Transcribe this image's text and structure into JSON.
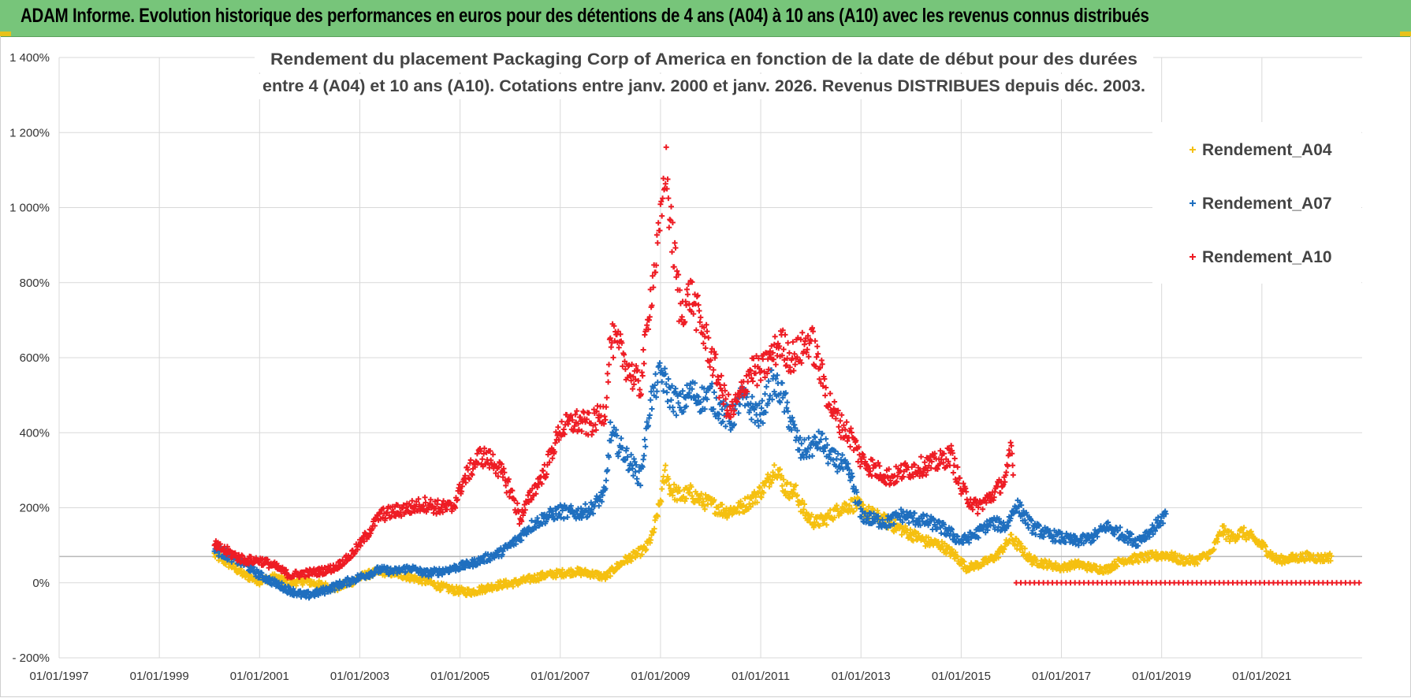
{
  "header": {
    "title": "ADAM Informe. Evolution historique des performances en euros pour des détentions de 4 ans (A04) à 10 ans (A10) avec les revenus connus distribués"
  },
  "colors": {
    "header_bg": "#77c57a",
    "a04": "#f5c010",
    "a07": "#1f6fbf",
    "a10": "#ee1c24"
  },
  "chart_data": {
    "type": "scatter",
    "title_lines": [
      "Rendement du placement Packaging Corp of America en fonction de la date de début pour des durées",
      "entre 4 (A04) et 10 ans (A10). Cotations entre janv. 2000 et janv. 2026. Revenus DISTRIBUES depuis déc. 2003."
    ],
    "x_unit": "year",
    "xlim": [
      1997.0,
      2023.0
    ],
    "ylim": [
      -200,
      1400
    ],
    "y_ticks": [
      -200,
      0,
      200,
      400,
      600,
      800,
      1000,
      1200,
      1400
    ],
    "y_tick_labels": [
      "- 200%",
      "0%",
      "200%",
      "400%",
      "600%",
      "800%",
      "1 000%",
      "1 200%",
      "1 400%"
    ],
    "x_ticks": [
      1997,
      1999,
      2001,
      2003,
      2005,
      2007,
      2009,
      2011,
      2013,
      2015,
      2017,
      2019,
      2021
    ],
    "x_tick_labels": [
      "01/01/1997",
      "01/01/1999",
      "01/01/2001",
      "01/01/2003",
      "01/01/2005",
      "01/01/2007",
      "01/01/2009",
      "01/01/2011",
      "01/01/2013",
      "01/01/2015",
      "01/01/2017",
      "01/01/2019",
      "01/01/2021"
    ],
    "reference_line_y": 70,
    "legend": [
      "Rendement_A04",
      "Rendement_A07",
      "Rendement_A10"
    ],
    "series": [
      {
        "name": "Rendement_A04",
        "color": "#f5c010",
        "points": [
          [
            2000.1,
            75
          ],
          [
            2000.4,
            50
          ],
          [
            2000.7,
            20
          ],
          [
            2001.0,
            5
          ],
          [
            2001.3,
            15
          ],
          [
            2001.6,
            0
          ],
          [
            2001.9,
            5
          ],
          [
            2002.2,
            -5
          ],
          [
            2002.5,
            -15
          ],
          [
            2002.8,
            0
          ],
          [
            2003.1,
            20
          ],
          [
            2003.4,
            30
          ],
          [
            2003.7,
            25
          ],
          [
            2004.0,
            15
          ],
          [
            2004.3,
            5
          ],
          [
            2004.6,
            -10
          ],
          [
            2004.9,
            -20
          ],
          [
            2005.2,
            -25
          ],
          [
            2005.5,
            -15
          ],
          [
            2005.8,
            -5
          ],
          [
            2006.1,
            0
          ],
          [
            2006.4,
            10
          ],
          [
            2006.7,
            20
          ],
          [
            2007.0,
            25
          ],
          [
            2007.3,
            30
          ],
          [
            2007.6,
            25
          ],
          [
            2007.9,
            15
          ],
          [
            2008.1,
            40
          ],
          [
            2008.3,
            60
          ],
          [
            2008.5,
            75
          ],
          [
            2008.7,
            90
          ],
          [
            2008.85,
            130
          ],
          [
            2009.0,
            220
          ],
          [
            2009.1,
            300
          ],
          [
            2009.2,
            250
          ],
          [
            2009.4,
            230
          ],
          [
            2009.6,
            240
          ],
          [
            2009.8,
            220
          ],
          [
            2010.0,
            210
          ],
          [
            2010.3,
            190
          ],
          [
            2010.6,
            200
          ],
          [
            2010.9,
            230
          ],
          [
            2011.1,
            260
          ],
          [
            2011.3,
            310
          ],
          [
            2011.5,
            250
          ],
          [
            2011.7,
            240
          ],
          [
            2011.9,
            180
          ],
          [
            2012.1,
            160
          ],
          [
            2012.3,
            170
          ],
          [
            2012.6,
            200
          ],
          [
            2012.9,
            210
          ],
          [
            2013.1,
            190
          ],
          [
            2013.4,
            170
          ],
          [
            2013.7,
            150
          ],
          [
            2014.0,
            130
          ],
          [
            2014.3,
            110
          ],
          [
            2014.6,
            100
          ],
          [
            2014.9,
            70
          ],
          [
            2015.1,
            40
          ],
          [
            2015.4,
            50
          ],
          [
            2015.7,
            70
          ],
          [
            2016.0,
            120
          ],
          [
            2016.2,
            90
          ],
          [
            2016.4,
            60
          ],
          [
            2016.7,
            50
          ],
          [
            2017.0,
            40
          ],
          [
            2017.3,
            50
          ],
          [
            2017.6,
            40
          ],
          [
            2017.9,
            35
          ],
          [
            2018.2,
            60
          ],
          [
            2018.5,
            65
          ],
          [
            2018.8,
            70
          ],
          [
            2019.1,
            75
          ],
          [
            2019.4,
            60
          ],
          [
            2019.7,
            60
          ],
          [
            2020.0,
            80
          ],
          [
            2020.2,
            140
          ],
          [
            2020.4,
            120
          ],
          [
            2020.6,
            135
          ],
          [
            2020.8,
            120
          ],
          [
            2021.0,
            100
          ],
          [
            2021.3,
            60
          ],
          [
            2021.6,
            65
          ],
          [
            2021.9,
            70
          ],
          [
            2022.2,
            65
          ],
          [
            2022.4,
            70
          ]
        ]
      },
      {
        "name": "Rendement_A07",
        "color": "#1f6fbf",
        "points": [
          [
            2000.1,
            90
          ],
          [
            2000.4,
            70
          ],
          [
            2000.7,
            50
          ],
          [
            2001.0,
            20
          ],
          [
            2001.3,
            0
          ],
          [
            2001.6,
            -20
          ],
          [
            2001.9,
            -35
          ],
          [
            2002.2,
            -25
          ],
          [
            2002.5,
            -10
          ],
          [
            2002.8,
            5
          ],
          [
            2003.1,
            20
          ],
          [
            2003.4,
            35
          ],
          [
            2003.7,
            30
          ],
          [
            2004.0,
            40
          ],
          [
            2004.3,
            25
          ],
          [
            2004.6,
            30
          ],
          [
            2004.9,
            40
          ],
          [
            2005.2,
            50
          ],
          [
            2005.5,
            65
          ],
          [
            2005.8,
            80
          ],
          [
            2006.1,
            110
          ],
          [
            2006.4,
            150
          ],
          [
            2006.7,
            175
          ],
          [
            2007.0,
            190
          ],
          [
            2007.3,
            185
          ],
          [
            2007.6,
            195
          ],
          [
            2007.9,
            240
          ],
          [
            2008.0,
            400
          ],
          [
            2008.2,
            360
          ],
          [
            2008.4,
            320
          ],
          [
            2008.6,
            280
          ],
          [
            2008.8,
            480
          ],
          [
            2009.0,
            560
          ],
          [
            2009.2,
            500
          ],
          [
            2009.4,
            470
          ],
          [
            2009.6,
            510
          ],
          [
            2009.8,
            490
          ],
          [
            2010.0,
            500
          ],
          [
            2010.2,
            460
          ],
          [
            2010.4,
            430
          ],
          [
            2010.6,
            490
          ],
          [
            2010.8,
            470
          ],
          [
            2011.0,
            440
          ],
          [
            2011.2,
            530
          ],
          [
            2011.4,
            510
          ],
          [
            2011.6,
            430
          ],
          [
            2011.8,
            350
          ],
          [
            2012.0,
            360
          ],
          [
            2012.2,
            380
          ],
          [
            2012.4,
            330
          ],
          [
            2012.6,
            320
          ],
          [
            2012.8,
            280
          ],
          [
            2013.0,
            180
          ],
          [
            2013.2,
            170
          ],
          [
            2013.5,
            160
          ],
          [
            2013.8,
            180
          ],
          [
            2014.1,
            170
          ],
          [
            2014.4,
            160
          ],
          [
            2014.7,
            140
          ],
          [
            2015.0,
            110
          ],
          [
            2015.3,
            130
          ],
          [
            2015.6,
            160
          ],
          [
            2015.9,
            150
          ],
          [
            2016.1,
            210
          ],
          [
            2016.4,
            150
          ],
          [
            2016.7,
            130
          ],
          [
            2017.0,
            120
          ],
          [
            2017.3,
            110
          ],
          [
            2017.6,
            120
          ],
          [
            2017.9,
            150
          ],
          [
            2018.2,
            130
          ],
          [
            2018.5,
            110
          ],
          [
            2018.8,
            140
          ],
          [
            2019.0,
            170
          ],
          [
            2019.1,
            180
          ]
        ]
      },
      {
        "name": "Rendement_A10",
        "color": "#ee1c24",
        "points": [
          [
            2000.1,
            100
          ],
          [
            2000.4,
            80
          ],
          [
            2000.7,
            60
          ],
          [
            2001.0,
            60
          ],
          [
            2001.3,
            45
          ],
          [
            2001.6,
            20
          ],
          [
            2001.9,
            25
          ],
          [
            2002.2,
            30
          ],
          [
            2002.5,
            40
          ],
          [
            2002.8,
            70
          ],
          [
            2003.1,
            120
          ],
          [
            2003.4,
            180
          ],
          [
            2003.7,
            190
          ],
          [
            2004.0,
            200
          ],
          [
            2004.3,
            210
          ],
          [
            2004.6,
            200
          ],
          [
            2004.85,
            200
          ],
          [
            2005.1,
            280
          ],
          [
            2005.4,
            340
          ],
          [
            2005.7,
            320
          ],
          [
            2006.0,
            250
          ],
          [
            2006.2,
            170
          ],
          [
            2006.4,
            230
          ],
          [
            2006.7,
            300
          ],
          [
            2007.0,
            410
          ],
          [
            2007.3,
            430
          ],
          [
            2007.6,
            420
          ],
          [
            2007.9,
            460
          ],
          [
            2008.0,
            650
          ],
          [
            2008.2,
            620
          ],
          [
            2008.4,
            560
          ],
          [
            2008.6,
            520
          ],
          [
            2008.8,
            760
          ],
          [
            2009.0,
            950
          ],
          [
            2009.1,
            1120
          ],
          [
            2009.2,
            960
          ],
          [
            2009.4,
            720
          ],
          [
            2009.6,
            770
          ],
          [
            2009.8,
            690
          ],
          [
            2010.0,
            610
          ],
          [
            2010.2,
            520
          ],
          [
            2010.4,
            450
          ],
          [
            2010.6,
            500
          ],
          [
            2010.8,
            570
          ],
          [
            2011.0,
            560
          ],
          [
            2011.2,
            600
          ],
          [
            2011.4,
            640
          ],
          [
            2011.6,
            600
          ],
          [
            2011.8,
            620
          ],
          [
            2012.0,
            650
          ],
          [
            2012.2,
            560
          ],
          [
            2012.4,
            470
          ],
          [
            2012.6,
            420
          ],
          [
            2012.8,
            390
          ],
          [
            2013.0,
            330
          ],
          [
            2013.3,
            300
          ],
          [
            2013.6,
            280
          ],
          [
            2013.9,
            300
          ],
          [
            2014.2,
            310
          ],
          [
            2014.5,
            320
          ],
          [
            2014.8,
            340
          ],
          [
            2015.0,
            250
          ],
          [
            2015.3,
            200
          ],
          [
            2015.6,
            230
          ],
          [
            2015.9,
            280
          ],
          [
            2016.0,
            370
          ],
          [
            2016.05,
            250
          ]
        ]
      },
      {
        "name": "Rendement_A10_zero",
        "color": "#ee1c24",
        "range": [
          2016.1,
          2023.0
        ],
        "value": 0
      }
    ]
  }
}
